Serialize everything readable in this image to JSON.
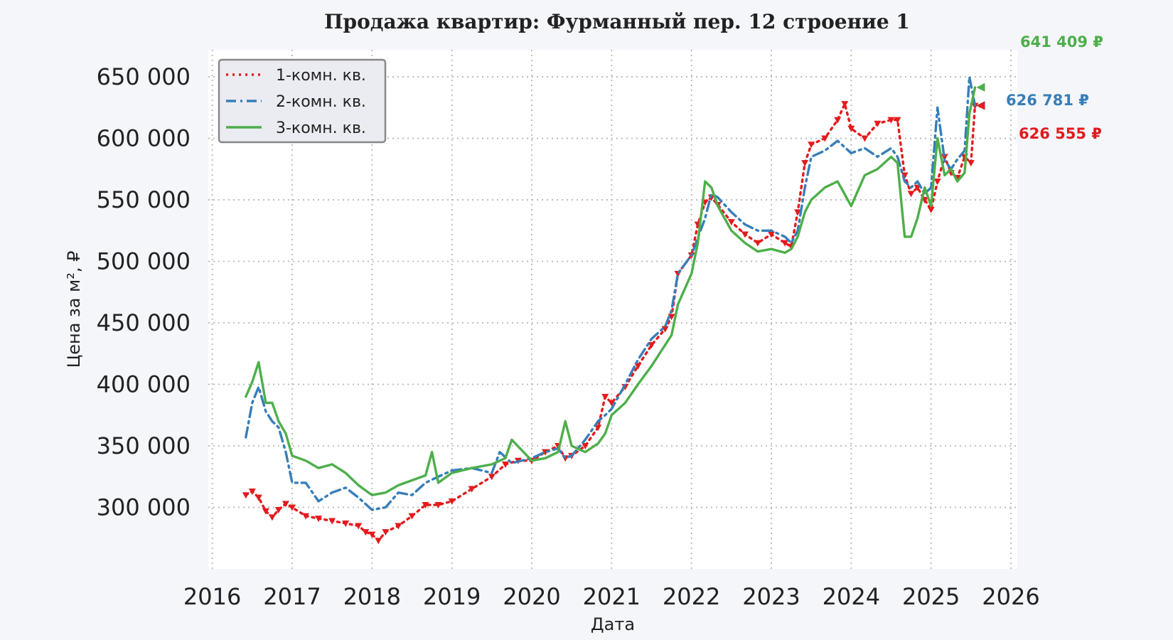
{
  "chart_data": {
    "type": "line",
    "title": "Продажа квартир: Фурманный пер. 12 строение 1",
    "xlabel": "Дата",
    "ylabel": "Цена за м², ₽",
    "xlim": [
      2016.0,
      2026.0
    ],
    "ylim": [
      250000,
      672000
    ],
    "x_ticks": [
      "2016",
      "2017",
      "2018",
      "2019",
      "2020",
      "2021",
      "2022",
      "2023",
      "2024",
      "2025",
      "2026"
    ],
    "y_ticks": [
      "300 000",
      "350 000",
      "400 000",
      "450 000",
      "500 000",
      "550 000",
      "600 000",
      "650 000"
    ],
    "grid": true,
    "legend_position": "top-left",
    "series": [
      {
        "name": "1-комн. кв.",
        "color": "#e41a1c",
        "style": "dotted",
        "marker": "triangle-down",
        "x": [
          2016.42,
          2016.5,
          2016.58,
          2016.67,
          2016.75,
          2016.83,
          2016.92,
          2017.0,
          2017.17,
          2017.33,
          2017.5,
          2017.67,
          2017.83,
          2017.92,
          2018.0,
          2018.08,
          2018.17,
          2018.33,
          2018.5,
          2018.67,
          2018.83,
          2019.0,
          2019.25,
          2019.5,
          2019.67,
          2019.83,
          2020.0,
          2020.17,
          2020.33,
          2020.42,
          2020.5,
          2020.67,
          2020.83,
          2020.92,
          2021.0,
          2021.17,
          2021.33,
          2021.5,
          2021.67,
          2021.75,
          2021.83,
          2022.0,
          2022.08,
          2022.17,
          2022.25,
          2022.33,
          2022.5,
          2022.67,
          2022.83,
          2023.0,
          2023.17,
          2023.25,
          2023.33,
          2023.42,
          2023.5,
          2023.67,
          2023.83,
          2023.92,
          2024.0,
          2024.17,
          2024.33,
          2024.5,
          2024.58,
          2024.67,
          2024.75,
          2024.83,
          2024.92,
          2025.0,
          2025.08,
          2025.17,
          2025.25,
          2025.33,
          2025.42,
          2025.5,
          2025.55
        ],
        "values": [
          310000,
          313000,
          308000,
          297000,
          292000,
          298000,
          303000,
          300000,
          293000,
          291000,
          289000,
          287000,
          285000,
          280000,
          278000,
          273000,
          280000,
          285000,
          293000,
          302000,
          302000,
          305000,
          315000,
          325000,
          335000,
          338000,
          338000,
          345000,
          350000,
          340000,
          342000,
          350000,
          365000,
          390000,
          385000,
          398000,
          415000,
          432000,
          445000,
          455000,
          490000,
          505000,
          530000,
          548000,
          552000,
          546000,
          532000,
          522000,
          515000,
          522000,
          515000,
          512000,
          540000,
          580000,
          595000,
          600000,
          615000,
          628000,
          608000,
          600000,
          612000,
          615000,
          615000,
          570000,
          555000,
          560000,
          550000,
          542000,
          565000,
          585000,
          572000,
          568000,
          585000,
          580000,
          626555
        ]
      },
      {
        "name": "2-комн. кв.",
        "color": "#377eb8",
        "style": "dash-dot",
        "x": [
          2016.42,
          2016.5,
          2016.58,
          2016.67,
          2016.75,
          2016.83,
          2016.92,
          2017.0,
          2017.17,
          2017.33,
          2017.5,
          2017.67,
          2017.83,
          2018.0,
          2018.17,
          2018.33,
          2018.5,
          2018.67,
          2018.83,
          2019.0,
          2019.25,
          2019.5,
          2019.6,
          2019.75,
          2020.0,
          2020.17,
          2020.33,
          2020.42,
          2020.5,
          2020.67,
          2020.83,
          2020.92,
          2021.0,
          2021.17,
          2021.33,
          2021.5,
          2021.67,
          2021.75,
          2021.83,
          2022.0,
          2022.17,
          2022.25,
          2022.33,
          2022.5,
          2022.67,
          2022.83,
          2023.0,
          2023.17,
          2023.25,
          2023.33,
          2023.42,
          2023.5,
          2023.67,
          2023.83,
          2024.0,
          2024.17,
          2024.33,
          2024.5,
          2024.58,
          2024.67,
          2024.75,
          2024.83,
          2024.92,
          2025.0,
          2025.08,
          2025.17,
          2025.25,
          2025.33,
          2025.42,
          2025.48,
          2025.55
        ],
        "values": [
          357000,
          385000,
          398000,
          378000,
          370000,
          365000,
          345000,
          320000,
          320000,
          305000,
          312000,
          316000,
          308000,
          298000,
          300000,
          312000,
          310000,
          320000,
          325000,
          330000,
          332000,
          328000,
          345000,
          336000,
          340000,
          345000,
          348000,
          340000,
          342000,
          355000,
          370000,
          375000,
          380000,
          400000,
          420000,
          437000,
          447000,
          460000,
          490000,
          505000,
          535000,
          555000,
          552000,
          540000,
          530000,
          525000,
          525000,
          520000,
          515000,
          525000,
          560000,
          585000,
          590000,
          598000,
          588000,
          592000,
          585000,
          592000,
          585000,
          565000,
          560000,
          565000,
          555000,
          560000,
          625000,
          582000,
          575000,
          583000,
          590000,
          650000,
          626781
        ]
      },
      {
        "name": "3-комн. кв.",
        "color": "#4daf4a",
        "style": "solid",
        "x": [
          2016.42,
          2016.5,
          2016.58,
          2016.67,
          2016.75,
          2016.83,
          2016.92,
          2017.0,
          2017.17,
          2017.33,
          2017.5,
          2017.67,
          2017.83,
          2018.0,
          2018.17,
          2018.33,
          2018.5,
          2018.67,
          2018.75,
          2018.83,
          2019.0,
          2019.25,
          2019.5,
          2019.67,
          2019.75,
          2020.0,
          2020.17,
          2020.33,
          2020.42,
          2020.5,
          2020.67,
          2020.83,
          2020.92,
          2021.0,
          2021.17,
          2021.33,
          2021.5,
          2021.67,
          2021.75,
          2021.83,
          2022.0,
          2022.08,
          2022.17,
          2022.25,
          2022.33,
          2022.5,
          2022.67,
          2022.83,
          2023.0,
          2023.17,
          2023.25,
          2023.33,
          2023.42,
          2023.5,
          2023.67,
          2023.83,
          2024.0,
          2024.17,
          2024.33,
          2024.5,
          2024.58,
          2024.67,
          2024.75,
          2024.83,
          2024.92,
          2025.0,
          2025.08,
          2025.17,
          2025.25,
          2025.33,
          2025.42,
          2025.48,
          2025.55
        ],
        "values": [
          390000,
          402000,
          418000,
          385000,
          385000,
          370000,
          360000,
          342000,
          338000,
          332000,
          335000,
          328000,
          318000,
          310000,
          312000,
          318000,
          322000,
          326000,
          345000,
          320000,
          328000,
          332000,
          335000,
          340000,
          355000,
          338000,
          340000,
          345000,
          370000,
          350000,
          345000,
          352000,
          360000,
          375000,
          385000,
          400000,
          415000,
          432000,
          440000,
          465000,
          490000,
          515000,
          565000,
          560000,
          545000,
          525000,
          515000,
          508000,
          510000,
          507000,
          510000,
          520000,
          540000,
          550000,
          560000,
          565000,
          545000,
          570000,
          575000,
          585000,
          580000,
          520000,
          520000,
          535000,
          560000,
          545000,
          600000,
          570000,
          575000,
          565000,
          572000,
          620000,
          641409
        ]
      }
    ],
    "annotations": [
      {
        "text": "641 409 ₽",
        "series": "3-комн. кв.",
        "color": "#4daf4a"
      },
      {
        "text": "626 781 ₽",
        "series": "2-комн. кв.",
        "color": "#377eb8"
      },
      {
        "text": "626 555 ₽",
        "series": "1-комн. кв.",
        "color": "#e41a1c"
      }
    ]
  }
}
